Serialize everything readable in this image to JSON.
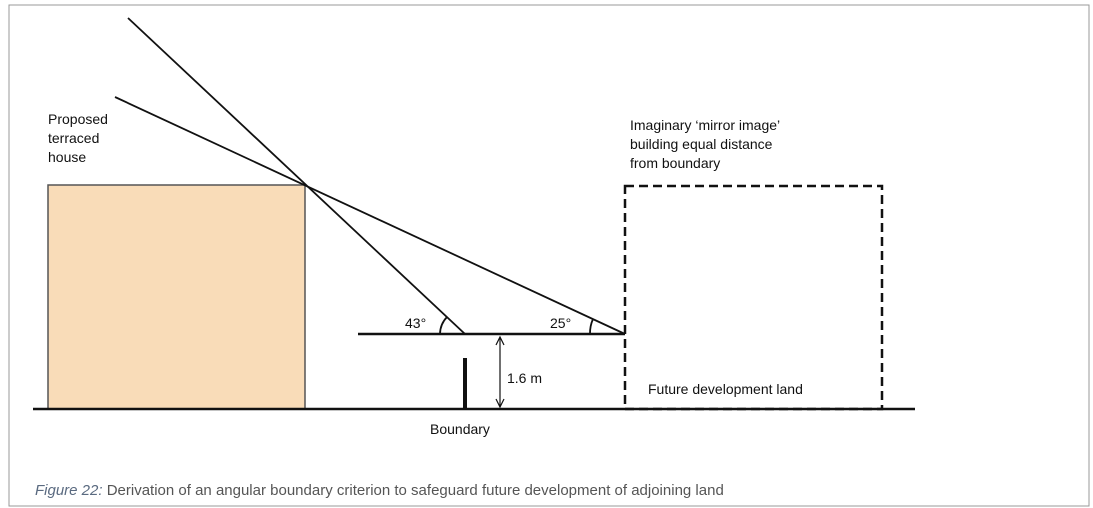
{
  "house_label": [
    "Proposed",
    "terraced",
    "house"
  ],
  "mirror_label": [
    "Imaginary ‘mirror image’",
    "building equal distance",
    "from boundary"
  ],
  "angle_steep": "43°",
  "angle_shallow": "25°",
  "height_label": "1.6 m",
  "boundary_label": "Boundary",
  "future_label": "Future development land",
  "caption": {
    "figure": "Figure 22:",
    "text": " Derivation of an angular boundary criterion to safeguard future development of adjoining land"
  }
}
